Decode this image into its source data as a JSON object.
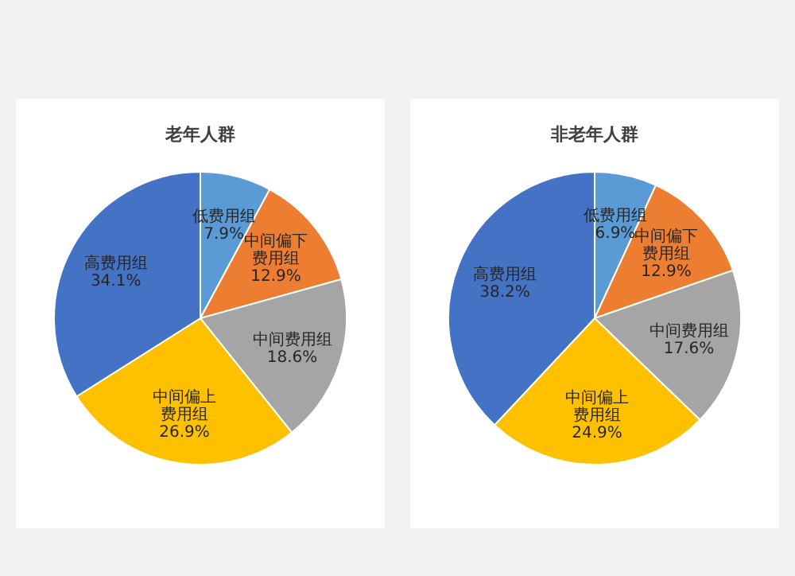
{
  "chart_data": [
    {
      "type": "pie",
      "title": "老年人群",
      "categories": [
        "低费用组",
        "中间偏下费用组",
        "中间费用组",
        "中间偏上费用组",
        "高费用组"
      ],
      "values": [
        7.9,
        12.9,
        18.6,
        26.9,
        34.1
      ],
      "value_labels": [
        "7.9%",
        "12.9%",
        "18.6%",
        "26.9%",
        "34.1%"
      ],
      "colors": [
        "#5b9bd5",
        "#ed7d31",
        "#a5a5a5",
        "#ffc000",
        "#4472c4"
      ]
    },
    {
      "type": "pie",
      "title": "非老年人群",
      "categories": [
        "低费用组",
        "中间偏下费用组",
        "中间费用组",
        "中间偏上费用组",
        "高费用组"
      ],
      "values": [
        6.9,
        12.9,
        17.6,
        24.9,
        38.2
      ],
      "value_labels": [
        "6.9%",
        "12.9%",
        "17.6%",
        "24.9%",
        "38.2%"
      ],
      "colors": [
        "#5b9bd5",
        "#ed7d31",
        "#a5a5a5",
        "#ffc000",
        "#4472c4"
      ]
    }
  ]
}
